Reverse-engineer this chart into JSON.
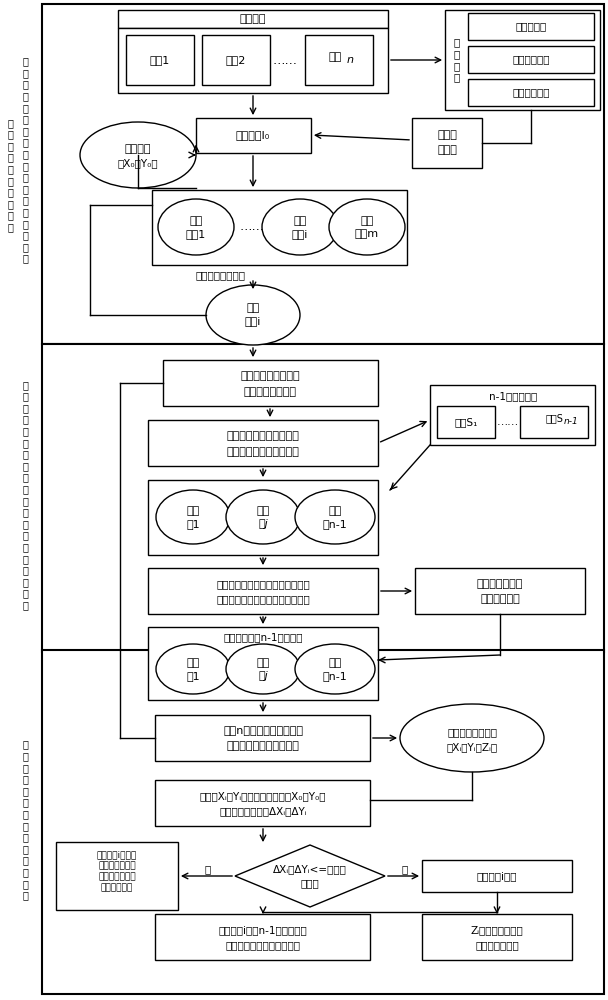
{
  "bg": "#ffffff",
  "lw": 1.0,
  "arrow_lw": 1.0,
  "sec1_label1": "确\n物\n基\n准\n像\n对\n的\n个\n匹\n点",
  "sec1_label2": "定\n方\n元\n基\n在\n准\n影\n像\n上\n应\n对\n的\n多\n个\n待\n匹\n配\n点",
  "sec2_label1": "对\n各\n待\n匹\n配\n点\n进\n行\n物\n方\n信\n息\n约\n束\n多\n视\n影\n像\n匹\n配",
  "sec3_label1": "匹\n配\n结\n果\n的\n物\n方\n坐\n标\n一\n致\n性\n验\n证"
}
